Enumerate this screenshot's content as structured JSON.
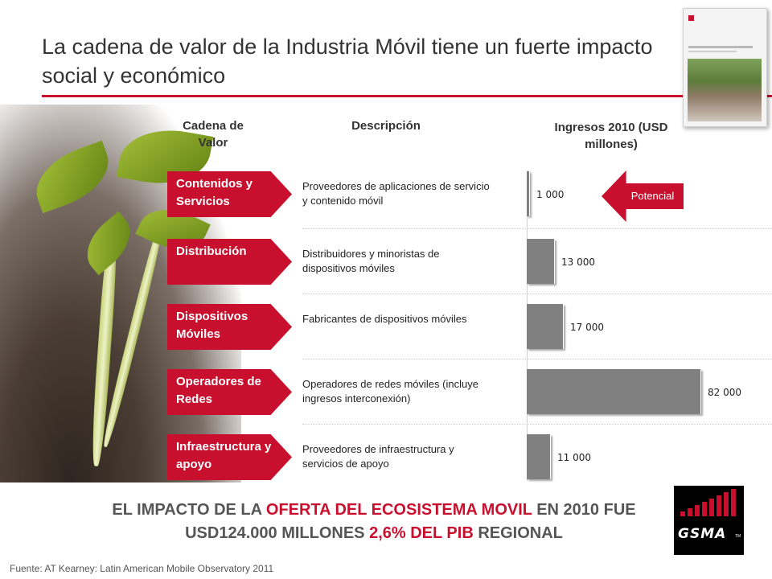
{
  "title": "La cadena de valor de la Industria Móvil tiene un fuerte impacto social y económico",
  "headers": {
    "chain": "Cadena de Valor",
    "description": "Descripción",
    "revenue": "Ingresos 2010 (USD millones)"
  },
  "potencial_label": "Potencial",
  "conclusion": {
    "part1": "EL IMPACTO DE LA ",
    "highlight1": "OFERTA DEL ECOSISTEMA MOVIL",
    "part2": " EN 2010 FUE USD124.000 MILLONES ",
    "highlight2": "2,6% DEL PIB",
    "part3": " REGIONAL"
  },
  "source": "Fuente: AT Kearney: Latin American Mobile Observatory 2011",
  "logo_text": "GSMA",
  "colors": {
    "accent": "#c8102e",
    "bar": "#808080"
  },
  "chart_data": {
    "type": "bar",
    "orientation": "horizontal",
    "title": "",
    "xlabel": "Ingresos 2010 (USD millones)",
    "ylabel": "Cadena de Valor",
    "categories": [
      "Contenidos y Servicios",
      "Distribución",
      "Dispositivos Móviles",
      "Operadores de Redes",
      "Infraestructura y apoyo"
    ],
    "descriptions": [
      "Proveedores de aplicaciones de servicio y contenido móvil",
      "Distribuidores y minoristas de dispositivos móviles",
      "Fabricantes de dispositivos móviles",
      "Operadores de redes móviles (incluye ingresos interconexión)",
      "Proveedores de infraestructura y servicios de apoyo"
    ],
    "values": [
      1000,
      13000,
      17000,
      82000,
      11000
    ],
    "value_labels": [
      "1 000",
      "13 000",
      "17 000",
      "82 000",
      "11 000"
    ],
    "xlim": [
      0,
      82000
    ],
    "grid": false,
    "legend": "none"
  }
}
